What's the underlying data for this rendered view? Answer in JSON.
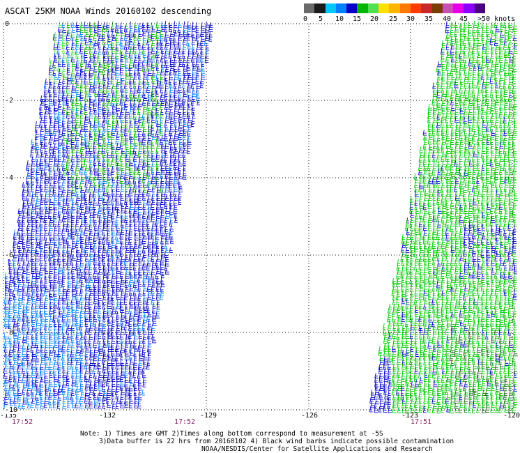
{
  "title": "ASCAT 25KM NOAA Winds 20160102 descending",
  "legend": {
    "colors": [
      "#6b6b6b",
      "#1a1a1a",
      "#00c8ff",
      "#0080ff",
      "#0000c8",
      "#00b400",
      "#50e050",
      "#ffe000",
      "#ffb400",
      "#ff7800",
      "#ff3c00",
      "#c82828",
      "#7a3c00",
      "#c850b4",
      "#e600e6",
      "#8c00ff",
      "#4b0082"
    ],
    "labels": [
      "0",
      "5",
      "10",
      "15",
      "20",
      "25",
      "30",
      "35",
      "40",
      "45",
      ">50 knots"
    ]
  },
  "map": {
    "x_ticks": [
      "-135",
      "-132",
      "-129",
      "-126",
      "-123",
      "-120"
    ],
    "y_ticks": [
      "0",
      "-2",
      "-4",
      "-6",
      "-8",
      "-10"
    ],
    "pass_times": [
      "17:52",
      "17:52",
      "17:51"
    ]
  },
  "notes": {
    "line1": "Note: 1) Times are GMT 2)Times along bottom correspond to measurement at -5S",
    "line2": "3)Data buffer is 22 hrs from 20160102 4) Black wind barbs indicate possible contamination",
    "line3": "NOAA/NESDIS/Center for Satellite Applications and Research"
  }
}
